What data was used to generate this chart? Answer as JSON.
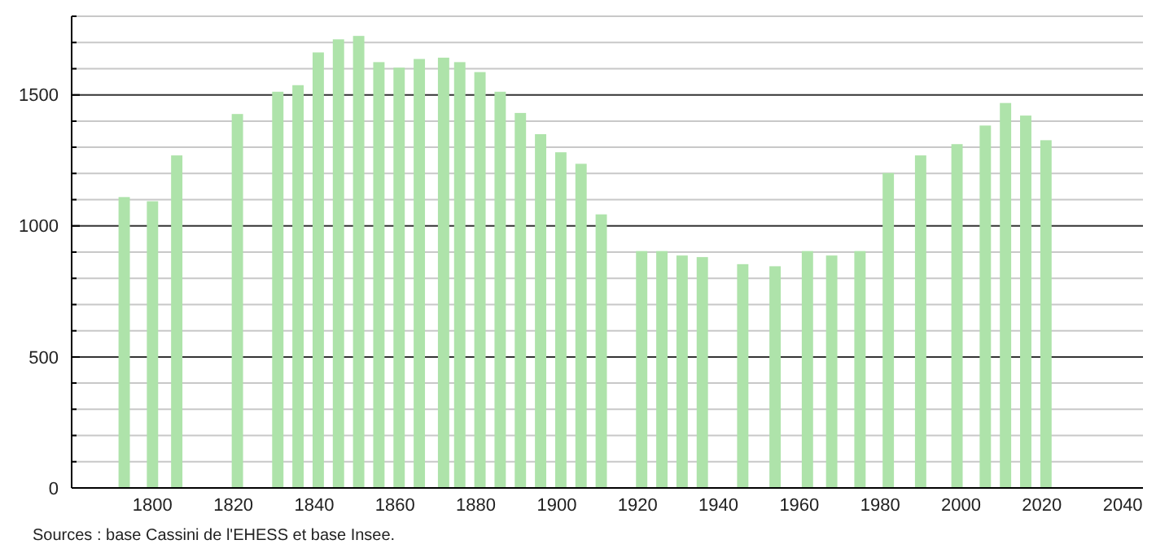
{
  "chart_data": {
    "type": "bar",
    "x": [
      1793,
      1800,
      1806,
      1821,
      1831,
      1836,
      1841,
      1846,
      1851,
      1856,
      1861,
      1866,
      1872,
      1876,
      1881,
      1886,
      1891,
      1896,
      1901,
      1906,
      1911,
      1921,
      1926,
      1931,
      1936,
      1946,
      1954,
      1962,
      1968,
      1975,
      1982,
      1990,
      1999,
      2006,
      2011,
      2016,
      2021
    ],
    "values": [
      1110,
      1094,
      1269,
      1427,
      1512,
      1537,
      1662,
      1712,
      1725,
      1625,
      1604,
      1637,
      1642,
      1625,
      1587,
      1512,
      1431,
      1350,
      1281,
      1237,
      1044,
      904,
      904,
      887,
      881,
      854,
      846,
      904,
      887,
      904,
      1202,
      1269,
      1312,
      1383,
      1469,
      1421,
      1327
    ],
    "color": "#aee3aa",
    "xlim": [
      1780,
      2045
    ],
    "xticks": [
      1800,
      1820,
      1840,
      1860,
      1880,
      1900,
      1920,
      1940,
      1960,
      1980,
      2000,
      2020,
      2040
    ],
    "ylim": [
      0,
      1800
    ],
    "yticks": [
      0,
      {
        "value": 100,
        "label": null
      },
      {
        "value": 200,
        "label": null
      },
      {
        "value": 300,
        "label": null
      },
      {
        "value": 400,
        "label": null
      },
      500,
      {
        "value": 600,
        "label": null
      },
      {
        "value": 700,
        "label": null
      },
      {
        "value": 800,
        "label": null
      },
      {
        "value": 900,
        "label": null
      },
      1000,
      {
        "value": 1100,
        "label": null
      },
      {
        "value": 1200,
        "label": null
      },
      {
        "value": 1300,
        "label": null
      },
      {
        "value": 1400,
        "label": null
      },
      1500,
      {
        "value": 1600,
        "label": null
      },
      {
        "value": 1700,
        "label": null
      },
      {
        "value": 1800,
        "label": null
      }
    ],
    "grid": "y",
    "annotations": [
      "Sources : base Cassini de l'EHESS et base Insee."
    ]
  }
}
